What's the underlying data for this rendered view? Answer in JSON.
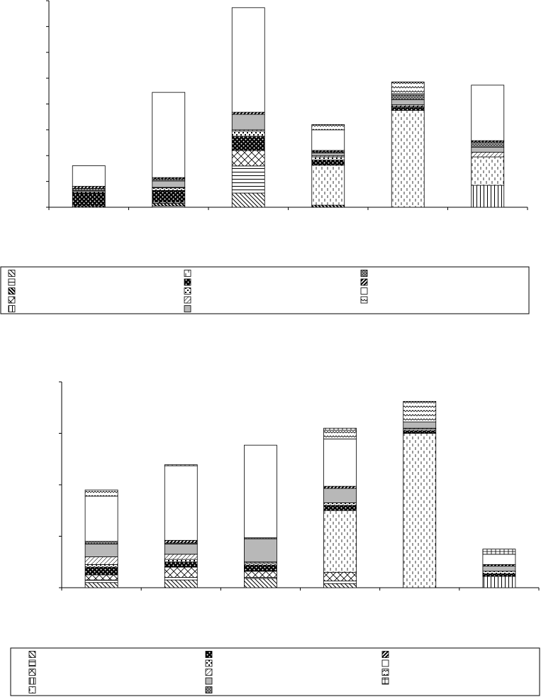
{
  "chart_data": [
    {
      "type": "bar",
      "stacked": true,
      "title": "",
      "xlabel": "",
      "ylabel": "",
      "ylim": [
        0,
        8
      ],
      "yticks": [
        0,
        1,
        2,
        3,
        4,
        5,
        6,
        7,
        8
      ],
      "categories": [
        "",
        "",
        "",
        "",
        "",
        ""
      ],
      "legend_position": "bottom",
      "series": [
        {
          "pattern": "diag-down",
          "values": [
            0,
            0,
            0.55,
            0,
            0,
            0
          ]
        },
        {
          "pattern": "horizontal",
          "values": [
            0,
            0.05,
            1.05,
            0,
            0,
            0
          ]
        },
        {
          "pattern": "diag-down-bold",
          "values": [
            0.05,
            0.1,
            0,
            0.08,
            0,
            0
          ]
        },
        {
          "pattern": "cross-x",
          "values": [
            0,
            0.05,
            0.6,
            0,
            0,
            0
          ]
        },
        {
          "pattern": "vertical",
          "values": [
            0,
            0,
            0,
            0,
            0,
            0.85
          ]
        },
        {
          "pattern": "dashed-vertical",
          "values": [
            0,
            0,
            0,
            1.55,
            3.75,
            1.1
          ]
        },
        {
          "pattern": "black-dots",
          "values": [
            0.5,
            0.45,
            0.55,
            0.2,
            0.12,
            0
          ]
        },
        {
          "pattern": "checker-dots",
          "values": [
            0.05,
            0.1,
            0.2,
            0.12,
            0.05,
            0
          ]
        },
        {
          "pattern": "light-diag",
          "values": [
            0,
            0.02,
            0.05,
            0.05,
            0.05,
            0.18
          ]
        },
        {
          "pattern": "gray",
          "values": [
            0.05,
            0.25,
            0.6,
            0.1,
            0.2,
            0.2
          ]
        },
        {
          "pattern": "dark-dots",
          "values": [
            0.08,
            0.08,
            0,
            0.05,
            0.18,
            0.2
          ]
        },
        {
          "pattern": "bold-diag",
          "values": [
            0.08,
            0.05,
            0.08,
            0.05,
            0,
            0.05
          ]
        },
        {
          "pattern": "white",
          "values": [
            0.8,
            3.3,
            4.05,
            0.8,
            0.05,
            2.15
          ]
        },
        {
          "pattern": "zigzag",
          "values": [
            0,
            0,
            0,
            0.2,
            0.45,
            0
          ]
        }
      ],
      "legend": [
        {
          "pattern": "diag-down",
          "label": ""
        },
        {
          "pattern": "horizontal",
          "label": ""
        },
        {
          "pattern": "diag-down-bold",
          "label": ""
        },
        {
          "pattern": "cross-x",
          "label": ""
        },
        {
          "pattern": "vertical",
          "label": ""
        },
        {
          "pattern": "dashed-vertical",
          "label": ""
        },
        {
          "pattern": "black-dots",
          "label": ""
        },
        {
          "pattern": "checker-dots",
          "label": ""
        },
        {
          "pattern": "light-diag",
          "label": ""
        },
        {
          "pattern": "gray",
          "label": ""
        },
        {
          "pattern": "dark-dots",
          "label": ""
        },
        {
          "pattern": "bold-diag",
          "label": ""
        },
        {
          "pattern": "white",
          "label": ""
        },
        {
          "pattern": "zigzag",
          "label": ""
        }
      ]
    },
    {
      "type": "bar",
      "stacked": true,
      "title": "",
      "xlabel": "",
      "ylabel": "",
      "ylim": [
        0,
        4
      ],
      "yticks": [
        0,
        1,
        2,
        3,
        4
      ],
      "categories": [
        "",
        "",
        "",
        "",
        "",
        ""
      ],
      "legend_position": "bottom",
      "series": [
        {
          "pattern": "diag-down",
          "values": [
            0.1,
            0.15,
            0.18,
            0.08,
            0,
            0
          ]
        },
        {
          "pattern": "horizontal",
          "values": [
            0.05,
            0.05,
            0.02,
            0.05,
            0,
            0
          ]
        },
        {
          "pattern": "cross-x",
          "values": [
            0.1,
            0.2,
            0.12,
            0.17,
            0,
            0
          ]
        },
        {
          "pattern": "vertical",
          "values": [
            0,
            0,
            0,
            0,
            0,
            0.22
          ]
        },
        {
          "pattern": "dashed-vertical",
          "values": [
            0,
            0,
            0,
            1.2,
            3.0,
            0
          ]
        },
        {
          "pattern": "black-dots",
          "values": [
            0.15,
            0.1,
            0.12,
            0.1,
            0.05,
            0.05
          ]
        },
        {
          "pattern": "checker-dots",
          "values": [
            0.05,
            0.05,
            0.04,
            0.05,
            0.03,
            0.05
          ]
        },
        {
          "pattern": "light-diag",
          "values": [
            0.15,
            0.1,
            0.02,
            0,
            0.02,
            0
          ]
        },
        {
          "pattern": "gray",
          "values": [
            0.25,
            0.2,
            0.45,
            0.28,
            0.12,
            0.1
          ]
        },
        {
          "pattern": "dark-dots",
          "values": [
            0.05,
            0.02,
            0.02,
            0,
            0,
            0
          ]
        },
        {
          "pattern": "bold-diag",
          "values": [
            0,
            0.05,
            0,
            0.04,
            0,
            0.03
          ]
        },
        {
          "pattern": "white",
          "values": [
            0.88,
            1.45,
            1.8,
            0.92,
            0,
            0.2
          ]
        },
        {
          "pattern": "zigzag",
          "values": [
            0.12,
            0,
            0,
            0.17,
            0.4,
            0
          ]
        },
        {
          "pattern": "grid-plus",
          "values": [
            0,
            0.02,
            0,
            0.04,
            0,
            0.1
          ]
        }
      ],
      "legend": [
        {
          "pattern": "diag-down",
          "label": ""
        },
        {
          "pattern": "horizontal",
          "label": ""
        },
        {
          "pattern": "cross-x",
          "label": ""
        },
        {
          "pattern": "vertical",
          "label": ""
        },
        {
          "pattern": "dashed-vertical",
          "label": ""
        },
        {
          "pattern": "black-dots",
          "label": ""
        },
        {
          "pattern": "checker-dots",
          "label": ""
        },
        {
          "pattern": "light-diag",
          "label": ""
        },
        {
          "pattern": "gray",
          "label": ""
        },
        {
          "pattern": "dark-dots",
          "label": ""
        },
        {
          "pattern": "bold-diag",
          "label": ""
        },
        {
          "pattern": "white",
          "label": ""
        },
        {
          "pattern": "zigzag",
          "label": ""
        },
        {
          "pattern": "grid-plus",
          "label": ""
        }
      ]
    }
  ]
}
